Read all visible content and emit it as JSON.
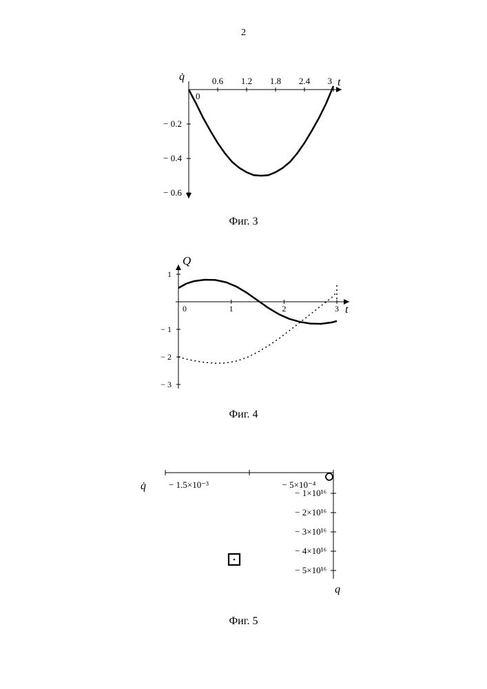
{
  "page_number": "2",
  "fig3": {
    "type": "line",
    "caption": "Фиг. 3",
    "y_label": "q̇",
    "x_label": "t",
    "x_ticks": [
      "0",
      "0.6",
      "1.2",
      "1.8",
      "2.4",
      "3"
    ],
    "y_ticks": [
      "− 0.2",
      "− 0.4",
      "− 0.6"
    ],
    "xlim": [
      0,
      3
    ],
    "ylim": [
      -0.6,
      0
    ],
    "curve_color": "#000000",
    "line_width": 2.5,
    "bg": "#ffffff",
    "points": [
      [
        0.0,
        0.0
      ],
      [
        0.15,
        -0.08
      ],
      [
        0.3,
        -0.165
      ],
      [
        0.45,
        -0.24
      ],
      [
        0.6,
        -0.31
      ],
      [
        0.75,
        -0.37
      ],
      [
        0.9,
        -0.42
      ],
      [
        1.05,
        -0.455
      ],
      [
        1.2,
        -0.48
      ],
      [
        1.35,
        -0.497
      ],
      [
        1.5,
        -0.5
      ],
      [
        1.65,
        -0.497
      ],
      [
        1.8,
        -0.48
      ],
      [
        1.95,
        -0.455
      ],
      [
        2.1,
        -0.42
      ],
      [
        2.25,
        -0.37
      ],
      [
        2.4,
        -0.31
      ],
      [
        2.55,
        -0.24
      ],
      [
        2.7,
        -0.165
      ],
      [
        2.85,
        -0.08
      ],
      [
        3.0,
        0.02
      ]
    ]
  },
  "fig4": {
    "type": "line",
    "caption": "Фиг. 4",
    "y_label": "Q",
    "x_label": "t",
    "x_ticks": [
      "0",
      "1",
      "2",
      "3"
    ],
    "y_ticks": [
      "1",
      "− 1",
      "− 2",
      "− 3"
    ],
    "xlim": [
      0,
      3
    ],
    "ylim": [
      -3,
      1
    ],
    "curve_color": "#000000",
    "line_width": 2.5,
    "bg": "#ffffff",
    "solid_points": [
      [
        0.0,
        0.5
      ],
      [
        0.15,
        0.66
      ],
      [
        0.3,
        0.75
      ],
      [
        0.5,
        0.8
      ],
      [
        0.7,
        0.79
      ],
      [
        0.9,
        0.71
      ],
      [
        1.1,
        0.55
      ],
      [
        1.3,
        0.32
      ],
      [
        1.5,
        0.05
      ],
      [
        1.7,
        -0.22
      ],
      [
        1.9,
        -0.45
      ],
      [
        2.1,
        -0.62
      ],
      [
        2.3,
        -0.73
      ],
      [
        2.5,
        -0.79
      ],
      [
        2.7,
        -0.8
      ],
      [
        2.9,
        -0.75
      ],
      [
        3.0,
        -0.7
      ]
    ],
    "dotted_points": [
      [
        0.0,
        -2.0
      ],
      [
        0.15,
        -2.08
      ],
      [
        0.3,
        -2.14
      ],
      [
        0.5,
        -2.2
      ],
      [
        0.7,
        -2.23
      ],
      [
        0.9,
        -2.22
      ],
      [
        1.1,
        -2.15
      ],
      [
        1.3,
        -2.02
      ],
      [
        1.5,
        -1.83
      ],
      [
        1.7,
        -1.6
      ],
      [
        1.9,
        -1.34
      ],
      [
        2.1,
        -1.05
      ],
      [
        2.3,
        -0.75
      ],
      [
        2.5,
        -0.45
      ],
      [
        2.7,
        -0.15
      ],
      [
        2.9,
        0.15
      ],
      [
        3.0,
        0.35
      ]
    ]
  },
  "fig5": {
    "type": "scatter",
    "caption": "Фиг. 5",
    "y_label": "q̇",
    "x_label": "q",
    "x_tick_labels": [
      "− 1.5×10⁻³",
      "− 5×10⁻⁴"
    ],
    "y_tick_labels": [
      "− 1×10¹⁶",
      "− 2×10¹⁶",
      "− 3×10¹⁶",
      "− 4×10¹⁶",
      "− 5×10¹⁶"
    ],
    "bg": "#ffffff",
    "marker_stroke": "#000000",
    "marker_stroke_width": 2
  }
}
